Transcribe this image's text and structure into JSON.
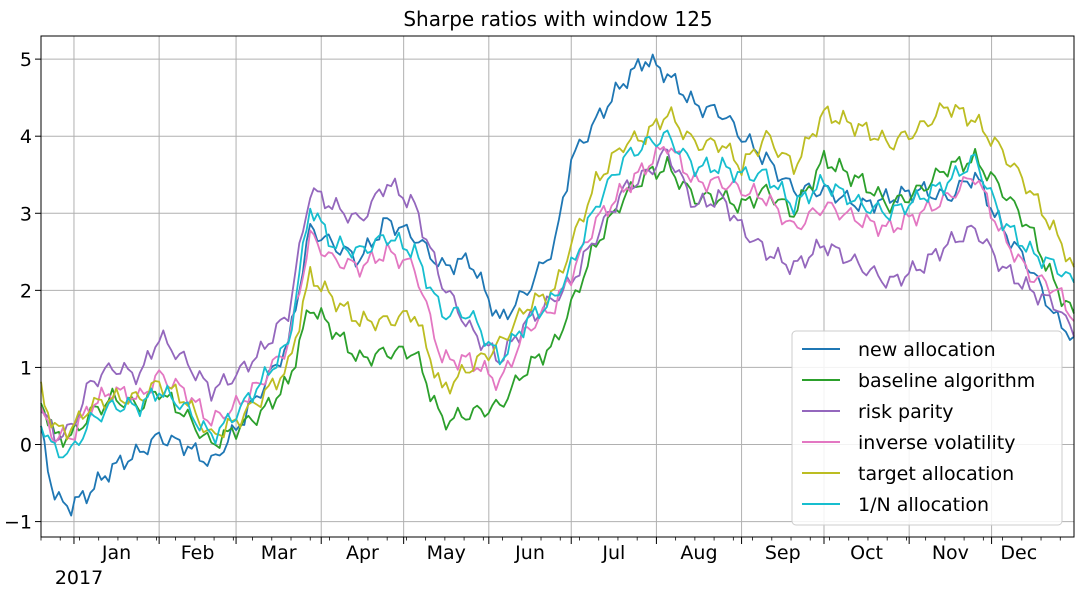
{
  "chart_data": {
    "type": "line",
    "title": "Sharpe ratios with window 125",
    "xlabel": "",
    "ylabel": "",
    "year_label": "2017",
    "month_ticks": [
      "Jan",
      "Feb",
      "Mar",
      "Apr",
      "May",
      "Jun",
      "Jul",
      "Aug",
      "Sep",
      "Oct",
      "Nov",
      "Dec"
    ],
    "y_ticks": [
      "−1",
      "0",
      "1",
      "2",
      "3",
      "4",
      "5"
    ],
    "x_range": [
      "2016-12-20",
      "2017-12-31"
    ],
    "ylim": [
      -1.2,
      5.3
    ],
    "grid": true,
    "legend_position": "lower right",
    "series": [
      {
        "name": "new allocation",
        "color": "#1f77b4",
        "points": [
          [
            "2016-12-20",
            0.2
          ],
          [
            "2016-12-25",
            -0.7
          ],
          [
            "2016-12-31",
            -0.8
          ],
          [
            "2017-01-07",
            -0.6
          ],
          [
            "2017-01-15",
            -0.3
          ],
          [
            "2017-01-25",
            -0.1
          ],
          [
            "2017-02-01",
            0.1
          ],
          [
            "2017-02-10",
            0.0
          ],
          [
            "2017-02-20",
            -0.25
          ],
          [
            "2017-03-01",
            0.2
          ],
          [
            "2017-03-10",
            0.7
          ],
          [
            "2017-03-20",
            1.3
          ],
          [
            "2017-03-28",
            2.8
          ],
          [
            "2017-04-05",
            2.6
          ],
          [
            "2017-04-15",
            2.4
          ],
          [
            "2017-04-25",
            2.9
          ],
          [
            "2017-05-05",
            2.7
          ],
          [
            "2017-05-15",
            2.3
          ],
          [
            "2017-05-25",
            2.4
          ],
          [
            "2017-06-05",
            1.6
          ],
          [
            "2017-06-15",
            2.0
          ],
          [
            "2017-06-25",
            2.6
          ],
          [
            "2017-07-01",
            3.7
          ],
          [
            "2017-07-10",
            4.2
          ],
          [
            "2017-07-20",
            4.7
          ],
          [
            "2017-07-28",
            5.0
          ],
          [
            "2017-08-05",
            4.8
          ],
          [
            "2017-08-15",
            4.4
          ],
          [
            "2017-08-25",
            4.3
          ],
          [
            "2017-09-01",
            4.0
          ],
          [
            "2017-09-10",
            3.7
          ],
          [
            "2017-09-20",
            3.3
          ],
          [
            "2017-10-01",
            3.3
          ],
          [
            "2017-10-15",
            3.1
          ],
          [
            "2017-10-25",
            3.2
          ],
          [
            "2017-11-05",
            3.3
          ],
          [
            "2017-11-15",
            3.2
          ],
          [
            "2017-11-25",
            3.5
          ],
          [
            "2017-12-05",
            2.8
          ],
          [
            "2017-12-15",
            2.3
          ],
          [
            "2017-12-25",
            1.6
          ],
          [
            "2017-12-31",
            1.4
          ]
        ]
      },
      {
        "name": "baseline algorithm",
        "color": "#2ca02c",
        "points": [
          [
            "2016-12-20",
            0.6
          ],
          [
            "2016-12-25",
            0.1
          ],
          [
            "2016-12-31",
            0.1
          ],
          [
            "2017-01-07",
            0.4
          ],
          [
            "2017-01-15",
            0.6
          ],
          [
            "2017-01-25",
            0.5
          ],
          [
            "2017-02-01",
            0.7
          ],
          [
            "2017-02-10",
            0.4
          ],
          [
            "2017-02-20",
            0.0
          ],
          [
            "2017-03-01",
            0.2
          ],
          [
            "2017-03-10",
            0.4
          ],
          [
            "2017-03-20",
            0.8
          ],
          [
            "2017-03-28",
            1.8
          ],
          [
            "2017-04-05",
            1.5
          ],
          [
            "2017-04-15",
            1.1
          ],
          [
            "2017-04-25",
            1.2
          ],
          [
            "2017-05-05",
            1.2
          ],
          [
            "2017-05-15",
            0.3
          ],
          [
            "2017-05-25",
            0.4
          ],
          [
            "2017-06-05",
            0.5
          ],
          [
            "2017-06-15",
            1.0
          ],
          [
            "2017-06-25",
            1.3
          ],
          [
            "2017-07-01",
            1.8
          ],
          [
            "2017-07-10",
            2.6
          ],
          [
            "2017-07-20",
            3.2
          ],
          [
            "2017-07-28",
            3.5
          ],
          [
            "2017-08-05",
            3.6
          ],
          [
            "2017-08-15",
            3.2
          ],
          [
            "2017-08-25",
            3.2
          ],
          [
            "2017-09-01",
            3.1
          ],
          [
            "2017-09-10",
            3.3
          ],
          [
            "2017-09-20",
            3.0
          ],
          [
            "2017-10-01",
            3.7
          ],
          [
            "2017-10-15",
            3.4
          ],
          [
            "2017-10-25",
            3.1
          ],
          [
            "2017-11-05",
            3.3
          ],
          [
            "2017-11-15",
            3.6
          ],
          [
            "2017-11-25",
            3.7
          ],
          [
            "2017-12-05",
            3.3
          ],
          [
            "2017-12-15",
            2.8
          ],
          [
            "2017-12-25",
            2.0
          ],
          [
            "2017-12-31",
            1.7
          ]
        ]
      },
      {
        "name": "risk parity",
        "color": "#9467bd",
        "points": [
          [
            "2016-12-20",
            0.5
          ],
          [
            "2016-12-25",
            0.1
          ],
          [
            "2016-12-31",
            0.2
          ],
          [
            "2017-01-07",
            0.8
          ],
          [
            "2017-01-15",
            1.0
          ],
          [
            "2017-01-25",
            0.9
          ],
          [
            "2017-02-01",
            1.4
          ],
          [
            "2017-02-10",
            1.1
          ],
          [
            "2017-02-20",
            0.7
          ],
          [
            "2017-03-01",
            0.9
          ],
          [
            "2017-03-10",
            1.2
          ],
          [
            "2017-03-20",
            1.7
          ],
          [
            "2017-03-28",
            3.3
          ],
          [
            "2017-04-05",
            3.1
          ],
          [
            "2017-04-15",
            2.9
          ],
          [
            "2017-04-25",
            3.4
          ],
          [
            "2017-05-05",
            3.1
          ],
          [
            "2017-05-15",
            2.1
          ],
          [
            "2017-05-25",
            1.5
          ],
          [
            "2017-06-05",
            1.1
          ],
          [
            "2017-06-15",
            1.6
          ],
          [
            "2017-06-25",
            1.9
          ],
          [
            "2017-07-01",
            2.1
          ],
          [
            "2017-07-10",
            2.7
          ],
          [
            "2017-07-20",
            3.3
          ],
          [
            "2017-07-28",
            3.5
          ],
          [
            "2017-08-05",
            3.8
          ],
          [
            "2017-08-15",
            3.1
          ],
          [
            "2017-08-25",
            3.2
          ],
          [
            "2017-09-01",
            2.8
          ],
          [
            "2017-09-10",
            2.5
          ],
          [
            "2017-09-20",
            2.3
          ],
          [
            "2017-10-01",
            2.6
          ],
          [
            "2017-10-15",
            2.3
          ],
          [
            "2017-10-25",
            2.1
          ],
          [
            "2017-11-05",
            2.3
          ],
          [
            "2017-11-15",
            2.6
          ],
          [
            "2017-11-25",
            2.8
          ],
          [
            "2017-12-05",
            2.3
          ],
          [
            "2017-12-15",
            2.0
          ],
          [
            "2017-12-25",
            1.8
          ],
          [
            "2017-12-31",
            1.4
          ]
        ]
      },
      {
        "name": "inverse volatility",
        "color": "#e377c2",
        "points": [
          [
            "2016-12-20",
            0.4
          ],
          [
            "2016-12-25",
            0.1
          ],
          [
            "2016-12-31",
            0.1
          ],
          [
            "2017-01-07",
            0.5
          ],
          [
            "2017-01-15",
            0.7
          ],
          [
            "2017-01-25",
            0.6
          ],
          [
            "2017-02-01",
            0.9
          ],
          [
            "2017-02-10",
            0.7
          ],
          [
            "2017-02-20",
            0.3
          ],
          [
            "2017-03-01",
            0.5
          ],
          [
            "2017-03-10",
            0.8
          ],
          [
            "2017-03-20",
            1.3
          ],
          [
            "2017-03-28",
            2.7
          ],
          [
            "2017-04-05",
            2.4
          ],
          [
            "2017-04-15",
            2.3
          ],
          [
            "2017-04-25",
            2.5
          ],
          [
            "2017-05-05",
            2.3
          ],
          [
            "2017-05-15",
            1.1
          ],
          [
            "2017-05-25",
            1.1
          ],
          [
            "2017-06-05",
            0.8
          ],
          [
            "2017-06-15",
            1.5
          ],
          [
            "2017-06-25",
            1.8
          ],
          [
            "2017-07-01",
            2.2
          ],
          [
            "2017-07-10",
            2.9
          ],
          [
            "2017-07-20",
            3.3
          ],
          [
            "2017-07-28",
            3.6
          ],
          [
            "2017-08-05",
            3.9
          ],
          [
            "2017-08-15",
            3.4
          ],
          [
            "2017-08-25",
            3.4
          ],
          [
            "2017-09-01",
            3.3
          ],
          [
            "2017-09-10",
            3.2
          ],
          [
            "2017-09-20",
            2.8
          ],
          [
            "2017-10-01",
            3.1
          ],
          [
            "2017-10-15",
            2.9
          ],
          [
            "2017-10-25",
            2.8
          ],
          [
            "2017-11-05",
            3.0
          ],
          [
            "2017-11-15",
            3.2
          ],
          [
            "2017-11-25",
            3.5
          ],
          [
            "2017-12-05",
            2.7
          ],
          [
            "2017-12-15",
            2.2
          ],
          [
            "2017-12-25",
            2.0
          ],
          [
            "2017-12-31",
            1.6
          ]
        ]
      },
      {
        "name": "target allocation",
        "color": "#bcbd22",
        "points": [
          [
            "2016-12-20",
            0.7
          ],
          [
            "2016-12-25",
            0.2
          ],
          [
            "2016-12-31",
            0.2
          ],
          [
            "2017-01-07",
            0.5
          ],
          [
            "2017-01-15",
            0.6
          ],
          [
            "2017-01-25",
            0.6
          ],
          [
            "2017-02-01",
            0.8
          ],
          [
            "2017-02-10",
            0.6
          ],
          [
            "2017-02-20",
            0.1
          ],
          [
            "2017-03-01",
            0.3
          ],
          [
            "2017-03-10",
            0.6
          ],
          [
            "2017-03-20",
            1.0
          ],
          [
            "2017-03-28",
            2.2
          ],
          [
            "2017-04-05",
            1.9
          ],
          [
            "2017-04-15",
            1.6
          ],
          [
            "2017-04-25",
            1.6
          ],
          [
            "2017-05-05",
            1.7
          ],
          [
            "2017-05-15",
            0.7
          ],
          [
            "2017-05-25",
            1.0
          ],
          [
            "2017-06-05",
            1.3
          ],
          [
            "2017-06-15",
            1.8
          ],
          [
            "2017-06-25",
            2.0
          ],
          [
            "2017-07-01",
            2.6
          ],
          [
            "2017-07-10",
            3.4
          ],
          [
            "2017-07-20",
            3.9
          ],
          [
            "2017-07-28",
            4.0
          ],
          [
            "2017-08-05",
            4.3
          ],
          [
            "2017-08-15",
            3.9
          ],
          [
            "2017-08-25",
            3.9
          ],
          [
            "2017-09-01",
            3.6
          ],
          [
            "2017-09-10",
            4.0
          ],
          [
            "2017-09-20",
            3.6
          ],
          [
            "2017-10-01",
            4.3
          ],
          [
            "2017-10-15",
            4.1
          ],
          [
            "2017-10-25",
            3.9
          ],
          [
            "2017-11-05",
            4.1
          ],
          [
            "2017-11-15",
            4.4
          ],
          [
            "2017-11-25",
            4.2
          ],
          [
            "2017-12-05",
            3.8
          ],
          [
            "2017-12-15",
            3.3
          ],
          [
            "2017-12-25",
            2.7
          ],
          [
            "2017-12-31",
            2.3
          ]
        ]
      },
      {
        "name": "1/N allocation",
        "color": "#17becf",
        "points": [
          [
            "2016-12-20",
            0.3
          ],
          [
            "2016-12-25",
            -0.1
          ],
          [
            "2016-12-31",
            -0.1
          ],
          [
            "2017-01-07",
            0.3
          ],
          [
            "2017-01-15",
            0.5
          ],
          [
            "2017-01-25",
            0.5
          ],
          [
            "2017-02-01",
            0.7
          ],
          [
            "2017-02-10",
            0.5
          ],
          [
            "2017-02-20",
            0.1
          ],
          [
            "2017-03-01",
            0.4
          ],
          [
            "2017-03-10",
            0.8
          ],
          [
            "2017-03-20",
            1.3
          ],
          [
            "2017-03-28",
            3.1
          ],
          [
            "2017-04-05",
            2.6
          ],
          [
            "2017-04-15",
            2.5
          ],
          [
            "2017-04-25",
            2.7
          ],
          [
            "2017-05-05",
            2.5
          ],
          [
            "2017-05-15",
            1.7
          ],
          [
            "2017-05-25",
            1.7
          ],
          [
            "2017-06-05",
            1.1
          ],
          [
            "2017-06-15",
            1.6
          ],
          [
            "2017-06-25",
            1.9
          ],
          [
            "2017-07-01",
            2.3
          ],
          [
            "2017-07-10",
            3.1
          ],
          [
            "2017-07-20",
            3.7
          ],
          [
            "2017-07-28",
            3.9
          ],
          [
            "2017-08-05",
            4.0
          ],
          [
            "2017-08-15",
            3.6
          ],
          [
            "2017-08-25",
            3.6
          ],
          [
            "2017-09-01",
            3.5
          ],
          [
            "2017-09-10",
            3.5
          ],
          [
            "2017-09-20",
            3.1
          ],
          [
            "2017-10-01",
            3.4
          ],
          [
            "2017-10-15",
            3.1
          ],
          [
            "2017-10-25",
            3.0
          ],
          [
            "2017-11-05",
            3.2
          ],
          [
            "2017-11-15",
            3.4
          ],
          [
            "2017-11-25",
            3.7
          ],
          [
            "2017-12-05",
            2.9
          ],
          [
            "2017-12-15",
            2.5
          ],
          [
            "2017-12-25",
            2.3
          ],
          [
            "2017-12-31",
            2.1
          ]
        ]
      }
    ]
  }
}
